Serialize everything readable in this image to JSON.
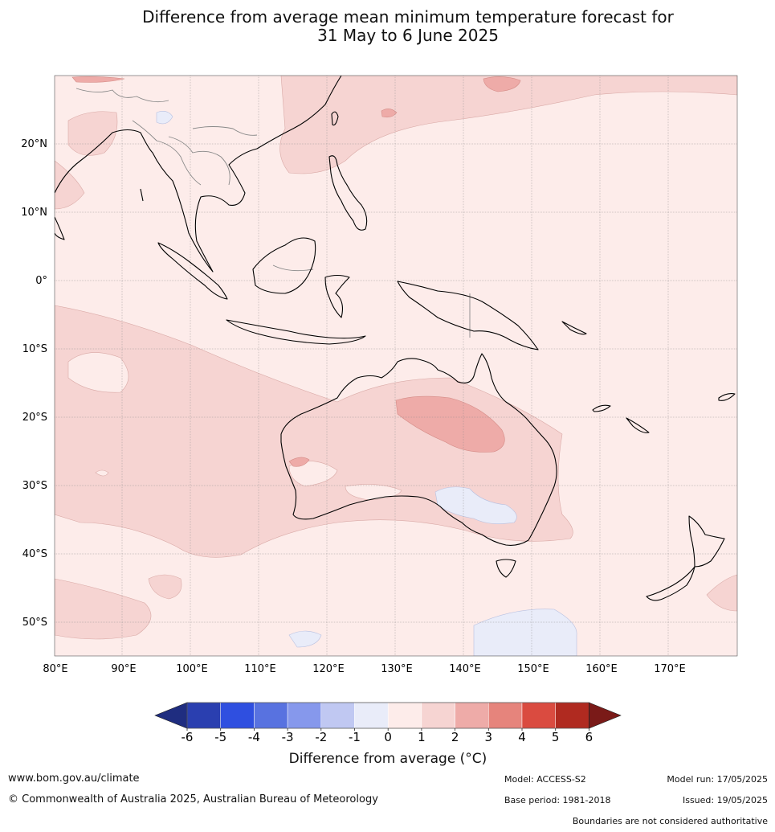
{
  "title": {
    "line1": "Difference from average mean minimum temperature forecast for",
    "line2": "31 May to 6 June 2025"
  },
  "map": {
    "lon_labels": [
      "80°E",
      "90°E",
      "100°E",
      "110°E",
      "120°E",
      "130°E",
      "140°E",
      "150°E",
      "160°E",
      "170°E"
    ],
    "lat_labels": [
      "20°N",
      "10°N",
      "0°",
      "10°S",
      "20°S",
      "30°S",
      "40°S",
      "50°S"
    ]
  },
  "colorbar": {
    "ticks": [
      "-6",
      "-5",
      "-4",
      "-3",
      "-2",
      "-1",
      "0",
      "1",
      "2",
      "3",
      "4",
      "5",
      "6"
    ],
    "colors": [
      "#1f2d80",
      "#2a3fb0",
      "#2f4fe0",
      "#5872e0",
      "#8698ec",
      "#c0c8f2",
      "#e9ecf9",
      "#fdecea",
      "#f6d4d2",
      "#eeaba8",
      "#e6847c",
      "#da4b40",
      "#b02a20",
      "#7a1a18"
    ],
    "label": "Difference from average (°C)"
  },
  "footer": {
    "url": "www.bom.gov.au/climate",
    "copyright": "© Commonwealth of Australia 2025, Australian Bureau of Meteorology",
    "model": "Model: ACCESS-S2",
    "base_period": "Base period: 1981-2018",
    "model_run": "Model run: 17/05/2025",
    "issued": "Issued: 19/05/2025",
    "boundaries": "Boundaries are not considered authoritative"
  }
}
